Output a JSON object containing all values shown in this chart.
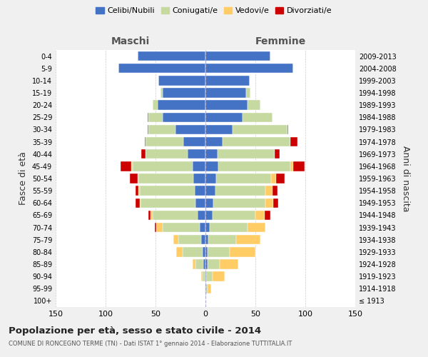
{
  "age_groups": [
    "100+",
    "95-99",
    "90-94",
    "85-89",
    "80-84",
    "75-79",
    "70-74",
    "65-69",
    "60-64",
    "55-59",
    "50-54",
    "45-49",
    "40-44",
    "35-39",
    "30-34",
    "25-29",
    "20-24",
    "15-19",
    "10-14",
    "5-9",
    "0-4"
  ],
  "birth_years": [
    "≤ 1913",
    "1914-1918",
    "1919-1923",
    "1924-1928",
    "1929-1933",
    "1934-1938",
    "1939-1943",
    "1944-1948",
    "1949-1953",
    "1954-1958",
    "1959-1963",
    "1964-1968",
    "1969-1973",
    "1974-1978",
    "1979-1983",
    "1984-1988",
    "1989-1993",
    "1994-1998",
    "1999-2003",
    "2004-2008",
    "2009-2013"
  ],
  "male": {
    "celibi": [
      0,
      0,
      0,
      2,
      3,
      4,
      6,
      8,
      10,
      11,
      12,
      13,
      18,
      22,
      30,
      43,
      48,
      43,
      47,
      87,
      68
    ],
    "coniugati": [
      0,
      1,
      3,
      8,
      20,
      23,
      37,
      45,
      55,
      55,
      55,
      60,
      42,
      38,
      27,
      14,
      5,
      2,
      0,
      0,
      0
    ],
    "vedovi": [
      0,
      0,
      1,
      3,
      6,
      5,
      6,
      2,
      1,
      1,
      1,
      1,
      0,
      0,
      0,
      0,
      0,
      0,
      0,
      0,
      0
    ],
    "divorziati": [
      0,
      0,
      0,
      0,
      0,
      0,
      2,
      2,
      4,
      3,
      8,
      11,
      4,
      1,
      1,
      1,
      0,
      0,
      0,
      0,
      0
    ]
  },
  "female": {
    "nubili": [
      0,
      0,
      1,
      2,
      2,
      3,
      4,
      7,
      8,
      10,
      11,
      13,
      12,
      17,
      27,
      37,
      42,
      41,
      44,
      88,
      65
    ],
    "coniugate": [
      0,
      2,
      6,
      12,
      22,
      28,
      38,
      43,
      52,
      50,
      55,
      72,
      57,
      68,
      55,
      30,
      13,
      4,
      0,
      0,
      0
    ],
    "vedove": [
      0,
      4,
      12,
      19,
      26,
      24,
      18,
      9,
      8,
      7,
      5,
      3,
      0,
      0,
      0,
      0,
      0,
      0,
      0,
      0,
      0
    ],
    "divorziate": [
      0,
      0,
      0,
      0,
      0,
      0,
      0,
      6,
      5,
      5,
      8,
      11,
      5,
      7,
      1,
      0,
      0,
      0,
      0,
      0,
      0
    ]
  },
  "colors": {
    "celibi_nubili": "#4472C4",
    "coniugati": "#C5D9A0",
    "vedovi": "#FFCC66",
    "divorziati": "#CC0000"
  },
  "xlim": 150,
  "title": "Popolazione per età, sesso e stato civile - 2014",
  "subtitle": "COMUNE DI RONCEGNO TERME (TN) - Dati ISTAT 1° gennaio 2014 - Elaborazione TUTTITALIA.IT",
  "ylabel_left": "Fasce di età",
  "ylabel_right": "Anni di nascita",
  "xlabel_left": "Maschi",
  "xlabel_right": "Femmine",
  "background_color": "#f0f0f0",
  "plot_bg": "#ffffff"
}
